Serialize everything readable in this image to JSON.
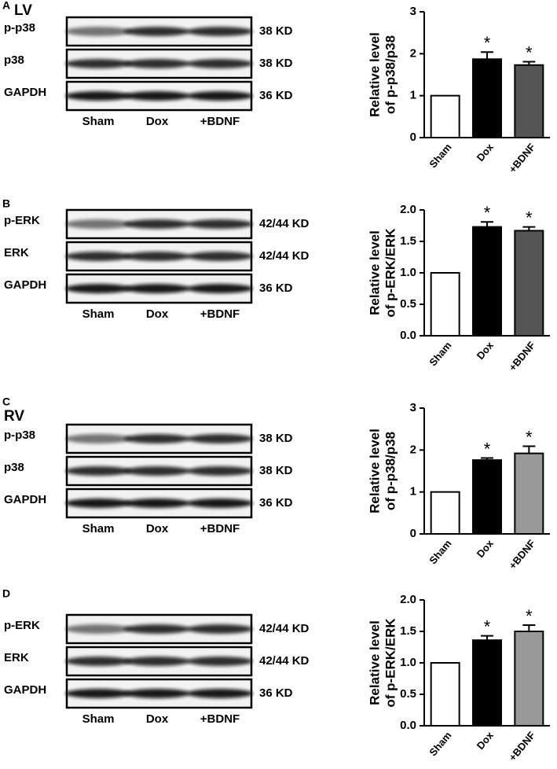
{
  "blots": [
    {
      "panel": "A",
      "region": "LV",
      "rows": [
        {
          "label": "p-p38",
          "size": "38 KD"
        },
        {
          "label": "p38",
          "size": "38 KD"
        },
        {
          "label": "GAPDH",
          "size": "36 KD"
        }
      ],
      "lanes": [
        "Sham",
        "Dox",
        "+BDNF"
      ]
    },
    {
      "panel": "B",
      "rows": [
        {
          "label": "p-ERK",
          "size": "42/44 KD"
        },
        {
          "label": "ERK",
          "size": "42/44 KD"
        },
        {
          "label": "GAPDH",
          "size": "36 KD"
        }
      ],
      "lanes": [
        "Sham",
        "Dox",
        "+BDNF"
      ]
    },
    {
      "panel": "C",
      "region": "RV",
      "rows": [
        {
          "label": "p-p38",
          "size": "38 KD"
        },
        {
          "label": "p38",
          "size": "38 KD"
        },
        {
          "label": "GAPDH",
          "size": "36 KD"
        }
      ],
      "lanes": [
        "Sham",
        "Dox",
        "+BDNF"
      ]
    },
    {
      "panel": "D",
      "rows": [
        {
          "label": "p-ERK",
          "size": "42/44 KD"
        },
        {
          "label": "ERK",
          "size": "42/44 KD"
        },
        {
          "label": "GAPDH",
          "size": "36 KD"
        }
      ],
      "lanes": [
        "Sham",
        "Dox",
        "+BDNF"
      ]
    }
  ],
  "chart_data": [
    {
      "type": "bar",
      "ylabel": [
        "Relative level",
        "of p-p38/p38"
      ],
      "categories": [
        "Sham",
        "Dox",
        "+BDNF"
      ],
      "values": [
        1,
        1.87,
        1.73
      ],
      "errors": [
        0,
        0.17,
        0.08
      ],
      "colors": [
        "#ffffff",
        "#000000",
        "#555555"
      ],
      "significance": [
        null,
        "*",
        "*"
      ],
      "ylim": [
        0,
        3
      ],
      "yticks": [
        0,
        1,
        2,
        3
      ]
    },
    {
      "type": "bar",
      "ylabel": [
        "Relative level",
        "of p-ERK/ERK"
      ],
      "categories": [
        "Sham",
        "Dox",
        "+BDNF"
      ],
      "values": [
        1,
        1.73,
        1.67
      ],
      "errors": [
        0,
        0.08,
        0.06
      ],
      "colors": [
        "#ffffff",
        "#000000",
        "#555555"
      ],
      "significance": [
        null,
        "*",
        "*"
      ],
      "ylim": [
        0,
        2
      ],
      "yticks": [
        {
          "value": 0,
          "label": "0.0"
        },
        {
          "value": 0.5,
          "label": "0.5"
        },
        {
          "value": 1,
          "label": "1.0"
        },
        {
          "value": 1.5,
          "label": "1.5"
        },
        {
          "value": 2,
          "label": "2.0"
        }
      ]
    },
    {
      "type": "bar",
      "ylabel": [
        "Relative level",
        "of p-p38/p38"
      ],
      "categories": [
        "Sham",
        "Dox",
        "+BDNF"
      ],
      "values": [
        1,
        1.76,
        1.92
      ],
      "errors": [
        0,
        0.05,
        0.17
      ],
      "colors": [
        "#ffffff",
        "#000000",
        "#999999"
      ],
      "significance": [
        null,
        "*",
        "*"
      ],
      "ylim": [
        0,
        3
      ],
      "yticks": [
        0,
        1,
        2,
        3
      ]
    },
    {
      "type": "bar",
      "ylabel": [
        "Relative level",
        "of p-ERK/ERK"
      ],
      "categories": [
        "Sham",
        "Dox",
        "+BDNF"
      ],
      "values": [
        1,
        1.36,
        1.5
      ],
      "errors": [
        0,
        0.07,
        0.1
      ],
      "colors": [
        "#ffffff",
        "#000000",
        "#999999"
      ],
      "significance": [
        null,
        "*",
        "*"
      ],
      "ylim": [
        0,
        2
      ],
      "yticks": [
        {
          "value": 0,
          "label": "0.0"
        },
        {
          "value": 0.5,
          "label": "0.5"
        },
        {
          "value": 1,
          "label": "1.0"
        },
        {
          "value": 1.5,
          "label": "1.5"
        },
        {
          "value": 2,
          "label": "2.0"
        }
      ]
    }
  ]
}
